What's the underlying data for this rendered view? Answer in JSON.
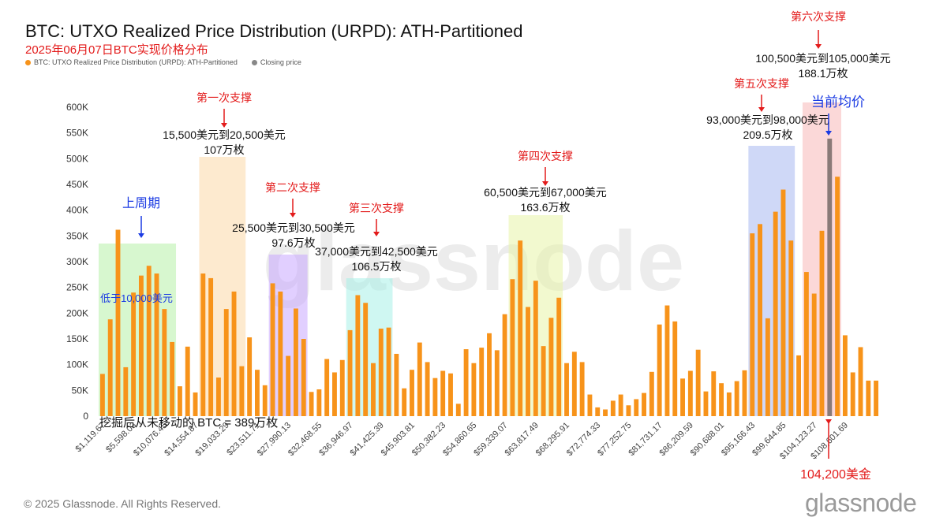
{
  "header": {
    "title": "BTC: UTXO Realized Price Distribution (URPD): ATH-Partitioned",
    "subtitle": "2025年06月07日BTC实现价格分布"
  },
  "legend": [
    {
      "label": "BTC: UTXO Realized Price Distribution (URPD): ATH-Partitioned",
      "color": "#f7931a"
    },
    {
      "label": "Closing price",
      "color": "#888888"
    }
  ],
  "footer": {
    "copyright": "© 2025 Glassnode. All Rights Reserved.",
    "brand": "glassnode",
    "watermark": "glassnode"
  },
  "chart_data": {
    "type": "bar",
    "ylim": [
      0,
      600000
    ],
    "y_ticks": [
      "0",
      "50K",
      "100K",
      "150K",
      "200K",
      "250K",
      "300K",
      "350K",
      "400K",
      "450K",
      "500K",
      "550K",
      "600K"
    ],
    "x_tick_labels": [
      "$1,119.67",
      "$5,598.03",
      "$10,076.45",
      "$14,554.87",
      "$19,033.29",
      "$23,511.71",
      "$27,990.13",
      "$32,468.55",
      "$36,946.97",
      "$41,425.39",
      "$45,903.81",
      "$50,382.23",
      "$54,860.65",
      "$59,339.07",
      "$63,817.49",
      "$68,295.91",
      "$72,774.33",
      "$77,252.75",
      "$81,731.17",
      "$86,209.59",
      "$90,688.01",
      "$95,166.43",
      "$99,644.85",
      "$104,123.27",
      "$108,601.69"
    ],
    "values": [
      82000,
      188000,
      362000,
      95000,
      240000,
      273000,
      292000,
      277000,
      208000,
      144000,
      58000,
      135000,
      46000,
      277000,
      268000,
      75000,
      208000,
      242000,
      97000,
      153000,
      90000,
      60000,
      258000,
      242000,
      117000,
      209000,
      150000,
      47000,
      52000,
      111000,
      85000,
      109000,
      167000,
      235000,
      220000,
      103000,
      170000,
      172000,
      121000,
      54000,
      90000,
      143000,
      105000,
      74000,
      88000,
      83000,
      24000,
      130000,
      103000,
      133000,
      161000,
      128000,
      198000,
      266000,
      341000,
      212000,
      263000,
      136000,
      191000,
      230000,
      103000,
      125000,
      105000,
      42000,
      17000,
      13000,
      30000,
      42000,
      21000,
      33000,
      45000,
      86000,
      178000,
      215000,
      184000,
      73000,
      88000,
      129000,
      48000,
      87000,
      64000,
      46000,
      68000,
      89000,
      355000,
      373000,
      190000,
      397000,
      440000,
      341000,
      118000,
      280000,
      238000,
      360000,
      539000,
      465000,
      157000,
      85000,
      134000,
      69000,
      69000
    ],
    "closing_price_index": 94,
    "closing_price": "104,200美金",
    "annotations": {
      "zones": [
        {
          "from": 0,
          "to": 9,
          "color": "#b6f0a8"
        },
        {
          "from": 13,
          "to": 18,
          "color": "#fcd8a8"
        },
        {
          "from": 22,
          "to": 26,
          "color": "#c8a8ff"
        },
        {
          "from": 32,
          "to": 37,
          "color": "#a8f0e8"
        },
        {
          "from": 53,
          "to": 59,
          "color": "#e8f4a8"
        },
        {
          "from": 84,
          "to": 89,
          "color": "#a8b8f0"
        },
        {
          "from": 91,
          "to": 95,
          "color": "#f8b8b8"
        }
      ],
      "supports": [
        {
          "label": "第一次支撑",
          "range": "15,500美元到20,500美元",
          "amount": "107万枚"
        },
        {
          "label": "第二次支撑",
          "range": "25,500美元到30,500美元",
          "amount": "97.6万枚"
        },
        {
          "label": "第三次支撑",
          "range": "37,000美元到42,500美元",
          "amount": "106.5万枚"
        },
        {
          "label": "第四次支撑",
          "range": "60,500美元到67,000美元",
          "amount": "163.6万枚"
        },
        {
          "label": "第五次支撑",
          "range": "93,000美元到98,000美元",
          "amount": "209.5万枚"
        },
        {
          "label": "第六次支撑",
          "range": "100,500美元到105,000美元",
          "amount": "188.1万枚"
        }
      ],
      "last_cycle": "上周期",
      "below_10k": "低于10,000美元",
      "current_avg": "当前均价",
      "unmoved": "挖掘后从未移动的 BTC = 389万枚"
    }
  }
}
